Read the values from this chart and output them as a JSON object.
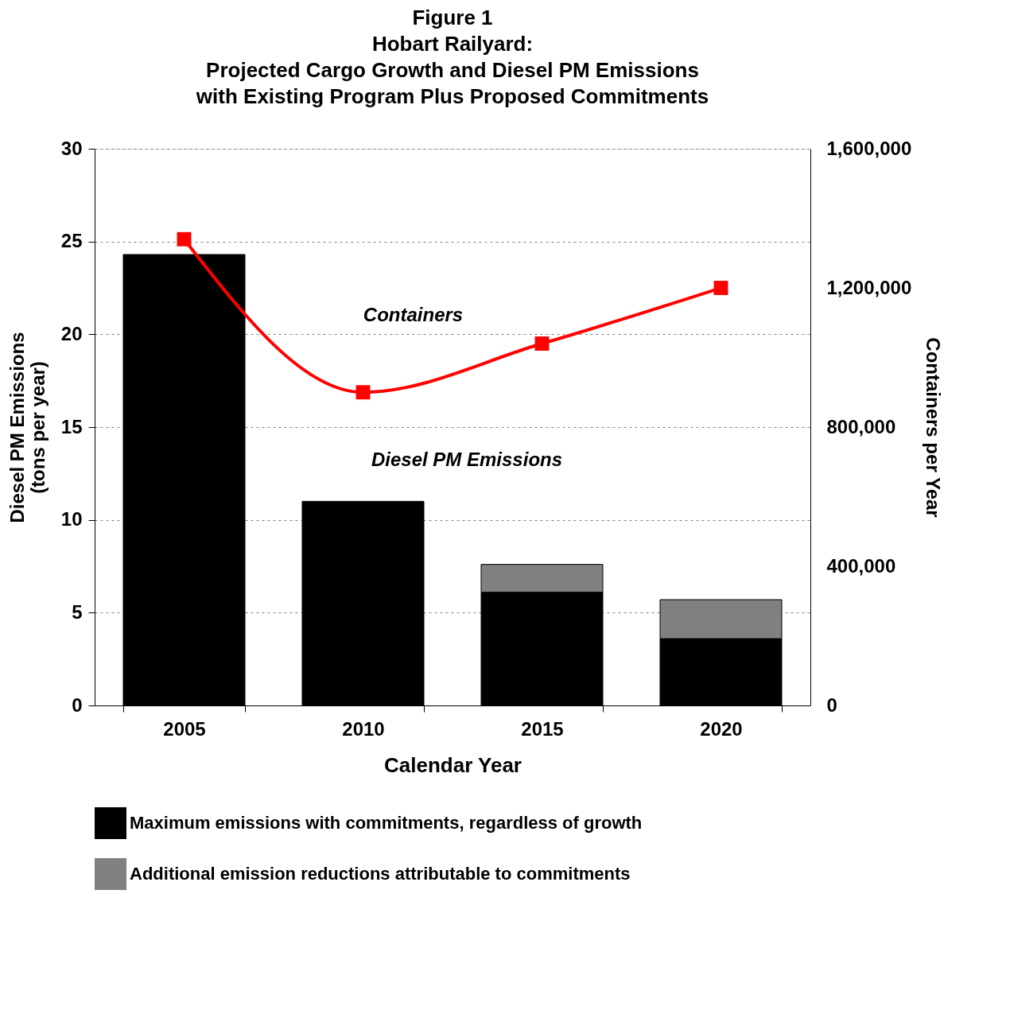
{
  "chart_data": {
    "type": "bar",
    "title": "Figure 1\nHobart Railyard:\nProjected Cargo Growth and Diesel PM Emissions\nwith Existing Program Plus Proposed Commitments",
    "xlabel": "Calendar Year",
    "ylabel": "Diesel PM Emissions\n(tons per year)",
    "y2label": "Containers per Year",
    "categories": [
      "2005",
      "2010",
      "2015",
      "2020"
    ],
    "stacked": true,
    "series": [
      {
        "name": "Maximum emissions with commitments, regardless of growth",
        "color": "#000000",
        "values": [
          24.3,
          11.0,
          6.1,
          3.6
        ]
      },
      {
        "name": "Additional emission reductions attributable to commitments",
        "color": "#808080",
        "values": [
          null,
          null,
          1.5,
          2.1
        ]
      },
      {
        "name": "Containers",
        "type": "line",
        "axis": "y2",
        "color": "#ff0000",
        "marker": "square",
        "values": [
          1340000,
          900000,
          1040000,
          1200000
        ]
      }
    ],
    "ylim": [
      0,
      30
    ],
    "yticks": [
      0,
      5,
      10,
      15,
      20,
      25,
      30
    ],
    "y2lim": [
      0,
      1600000
    ],
    "y2ticks": [
      0,
      {
        "value": 400000,
        "label": "400,000"
      },
      {
        "value": 800000,
        "label": "800,000"
      },
      {
        "value": 1200000,
        "label": "1,200,000"
      },
      {
        "value": 1600000,
        "label": "1,600,000"
      }
    ],
    "grid": "y",
    "legend": "bottom",
    "annotations": [
      "Diesel PM Emissions"
    ]
  }
}
